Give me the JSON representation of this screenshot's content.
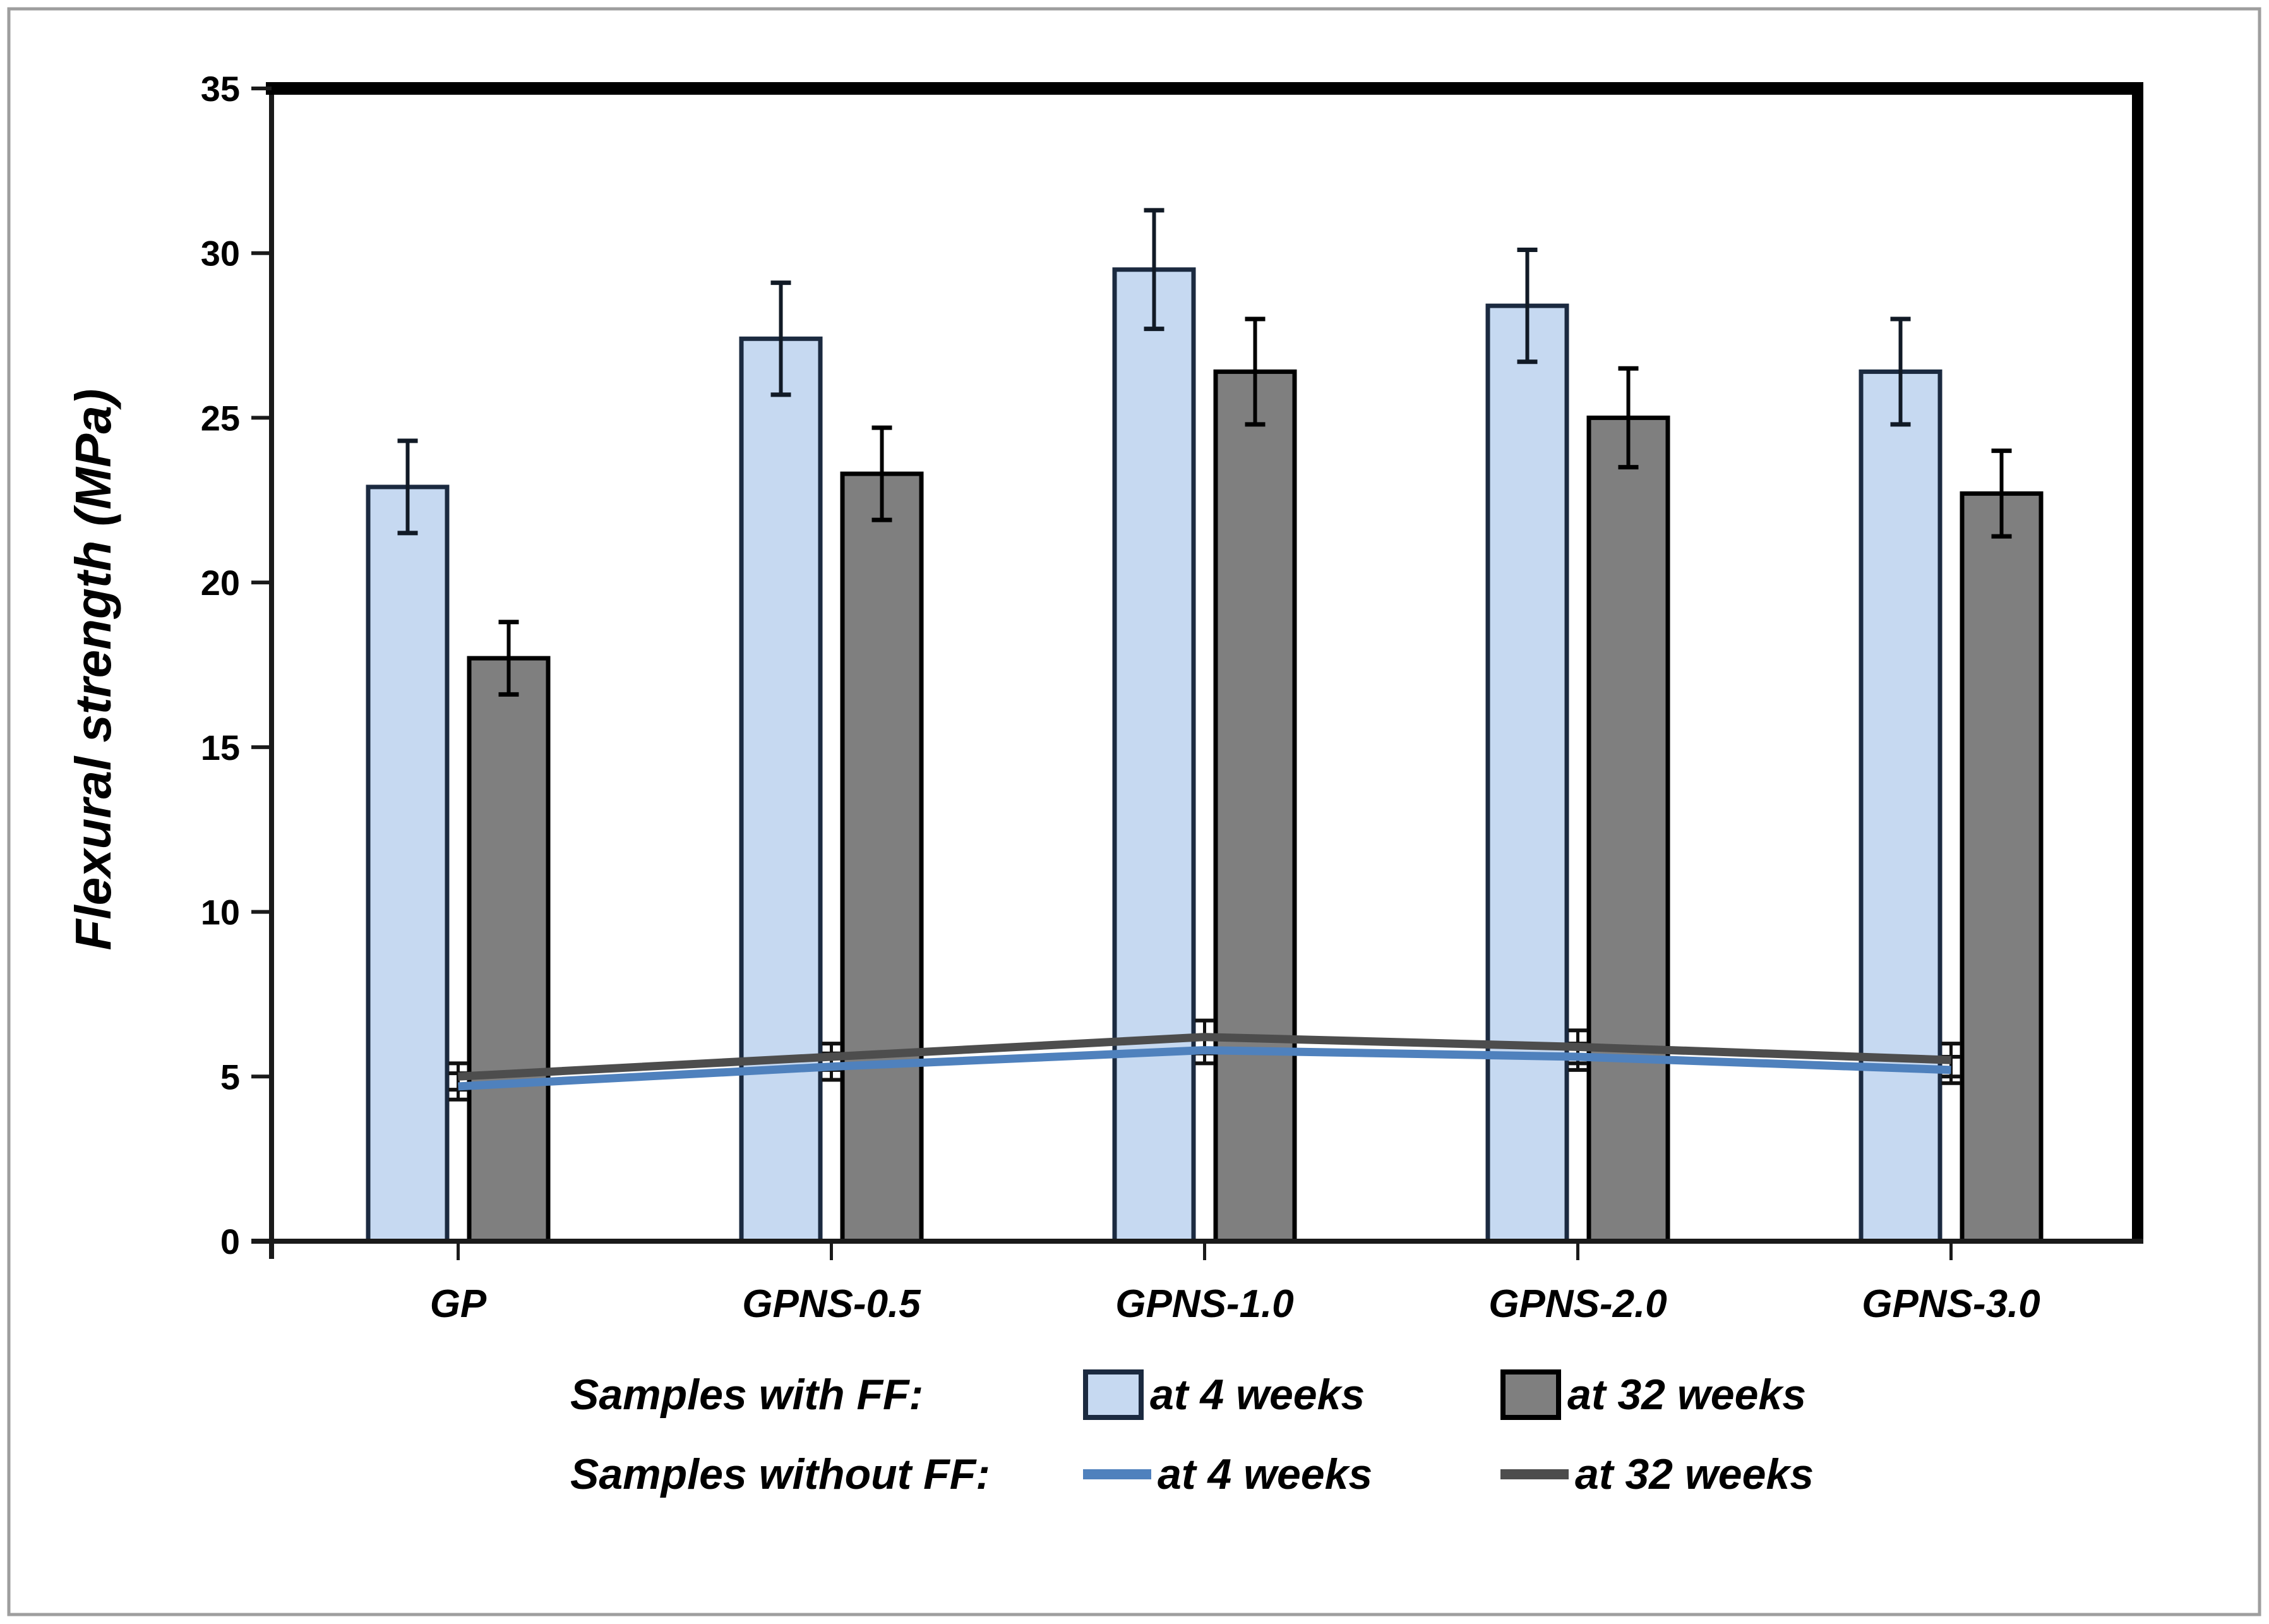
{
  "figure": {
    "background": "#ffffff",
    "outer_border_color": "#9e9e9e"
  },
  "chart_data": {
    "type": "bar+line",
    "title": "",
    "xlabel": "",
    "ylabel": "Flexural strength (MPa)",
    "ylim": [
      0,
      35
    ],
    "ytick_step": 5,
    "grid": "off",
    "legend_position": "bottom",
    "categories": [
      "GP",
      "GPNS-0.5",
      "GPNS-1.0",
      "GPNS-2.0",
      "GPNS-3.0"
    ],
    "series": [
      {
        "kind": "bar",
        "group": "Samples with FF",
        "name": "at 4 weeks",
        "color": "#c6d9f1",
        "border_color": "#1b2a40",
        "error_color": "#111a26",
        "values": [
          22.9,
          27.4,
          29.5,
          28.4,
          26.4
        ],
        "errors": [
          1.4,
          1.7,
          1.8,
          1.7,
          1.6
        ]
      },
      {
        "kind": "bar",
        "group": "Samples with FF",
        "name": "at 32 weeks",
        "color": "#7f7f7f",
        "border_color": "#000000",
        "error_color": "#000000",
        "values": [
          17.7,
          23.3,
          26.4,
          25.0,
          22.7
        ],
        "errors": [
          1.1,
          1.4,
          1.6,
          1.5,
          1.3
        ]
      },
      {
        "kind": "line",
        "group": "Samples without FF",
        "name": "at 4 weeks",
        "color": "#4f81bd",
        "error_color": "#111111",
        "values": [
          4.7,
          5.3,
          5.8,
          5.6,
          5.2
        ],
        "errors": [
          0.4,
          0.4,
          0.4,
          0.4,
          0.4
        ]
      },
      {
        "kind": "line",
        "group": "Samples without FF",
        "name": "at 32 weeks",
        "color": "#4d4d4d",
        "error_color": "#111111",
        "values": [
          5.0,
          5.6,
          6.2,
          5.9,
          5.5
        ],
        "errors": [
          0.4,
          0.4,
          0.5,
          0.5,
          0.5
        ]
      }
    ],
    "legend": {
      "row1_label": "Samples with FF:",
      "row1_item1": "at 4 weeks",
      "row1_item2": "at 32 weeks",
      "row2_label": "Samples without FF:",
      "row2_item1": "at 4 weeks",
      "row2_item2": "at 32 weeks"
    }
  }
}
